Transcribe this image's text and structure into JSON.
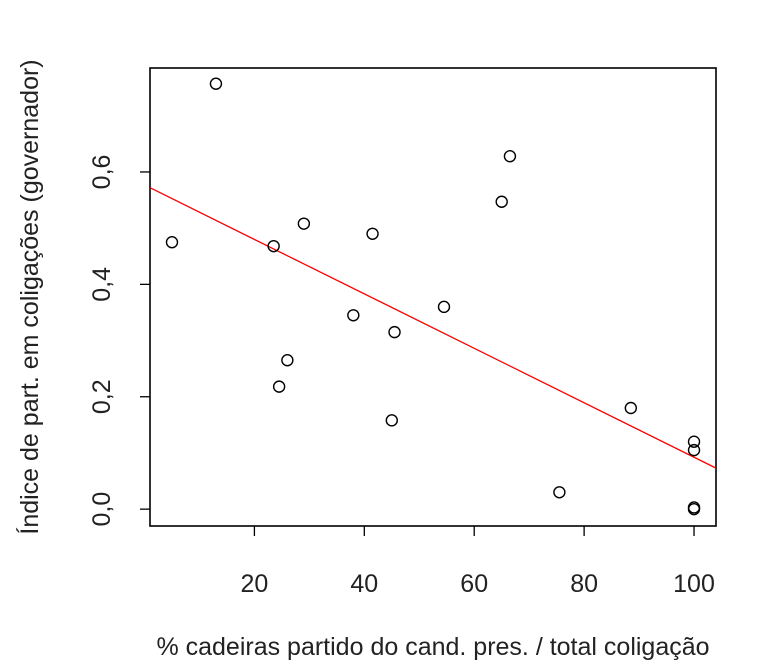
{
  "chart_data": {
    "type": "scatter",
    "title": "",
    "xlabel": "% cadeiras partido do cand. pres. / total coligação",
    "ylabel": "Índice de part. em coligações (governador)",
    "xlim": [
      1,
      104
    ],
    "ylim": [
      -0.03,
      0.785
    ],
    "x_ticks": [
      20,
      40,
      60,
      80,
      100
    ],
    "x_tick_labels": [
      "20",
      "40",
      "60",
      "80",
      "100"
    ],
    "y_ticks": [
      0.0,
      0.2,
      0.4,
      0.6
    ],
    "y_tick_labels": [
      "0,0",
      "0,2",
      "0,4",
      "0,6"
    ],
    "grid": false,
    "points": [
      {
        "x": 5,
        "y": 0.475
      },
      {
        "x": 13,
        "y": 0.757
      },
      {
        "x": 23.5,
        "y": 0.468
      },
      {
        "x": 24.5,
        "y": 0.218
      },
      {
        "x": 26,
        "y": 0.265
      },
      {
        "x": 29,
        "y": 0.508
      },
      {
        "x": 38,
        "y": 0.345
      },
      {
        "x": 41.5,
        "y": 0.49
      },
      {
        "x": 45,
        "y": 0.158
      },
      {
        "x": 45.5,
        "y": 0.315
      },
      {
        "x": 54.5,
        "y": 0.36
      },
      {
        "x": 65,
        "y": 0.547
      },
      {
        "x": 66.5,
        "y": 0.628
      },
      {
        "x": 75.5,
        "y": 0.03
      },
      {
        "x": 88.5,
        "y": 0.18
      },
      {
        "x": 100,
        "y": 0.12
      },
      {
        "x": 100,
        "y": 0.105
      },
      {
        "x": 100,
        "y": 0.003
      },
      {
        "x": 100,
        "y": 0.0
      }
    ],
    "fit_line": {
      "color": "#ff0000",
      "x": [
        1,
        104
      ],
      "y": [
        0.572,
        0.073
      ]
    },
    "point_color": "#000000"
  }
}
